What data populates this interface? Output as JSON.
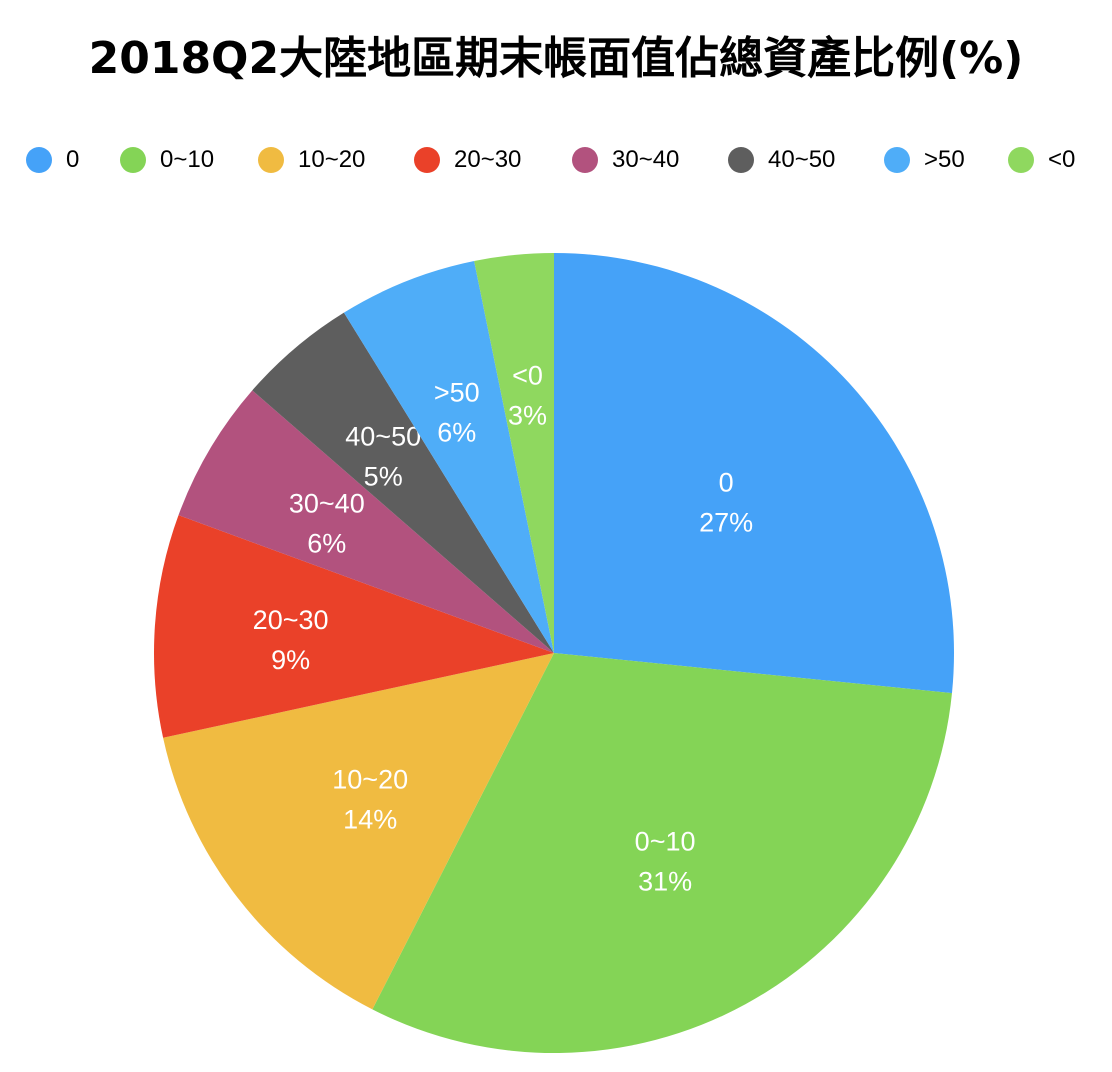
{
  "title": "2018Q2大陸地區期末帳面值佔總資產比例(%)",
  "chart_data": {
    "type": "pie",
    "title": "2018Q2大陸地區期末帳面值佔總資產比例(%)",
    "legend_position": "top",
    "start_angle_deg": 0,
    "direction": "clockwise",
    "slices": [
      {
        "label": "0",
        "value": 26.6,
        "display": "27%",
        "color": "#45a2f8"
      },
      {
        "label": "0~10",
        "value": 30.9,
        "display": "31%",
        "color": "#84d456"
      },
      {
        "label": "10~20",
        "value": 14.1,
        "display": "14%",
        "color": "#f0bb41"
      },
      {
        "label": "20~30",
        "value": 9.0,
        "display": "9%",
        "color": "#ea4129"
      },
      {
        "label": "30~40",
        "value": 5.8,
        "display": "6%",
        "color": "#b2527e"
      },
      {
        "label": "40~50",
        "value": 4.8,
        "display": "5%",
        "color": "#5e5e5e"
      },
      {
        "label": ">50",
        "value": 5.6,
        "display": "6%",
        "color": "#4fadf8"
      },
      {
        "label": "<0",
        "value": 3.2,
        "display": "3%",
        "color": "#8fd85f"
      }
    ]
  }
}
